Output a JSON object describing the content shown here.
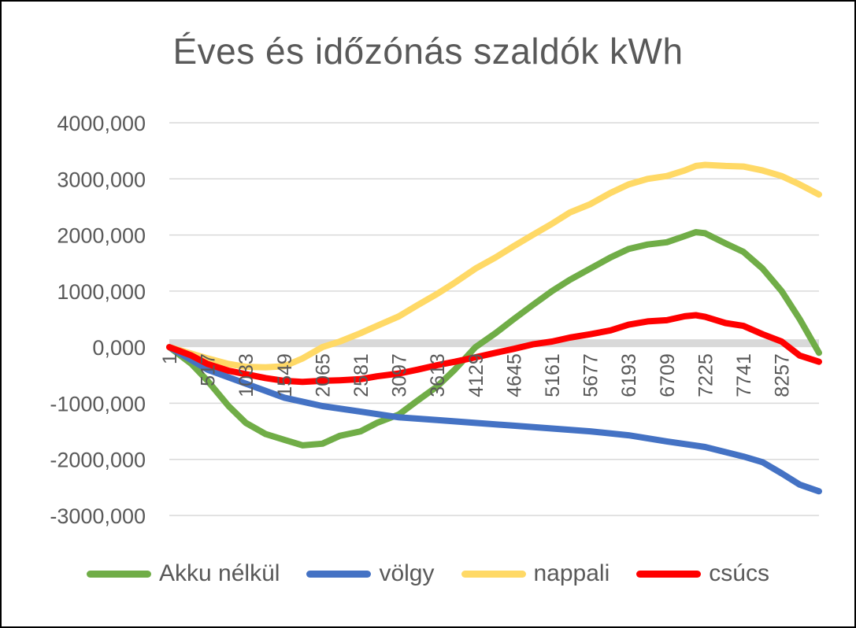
{
  "chart_data": {
    "type": "line",
    "title": "Éves és időzónás szaldók kWh",
    "xlabel": "",
    "ylabel": "",
    "ylim": [
      -3000,
      4000
    ],
    "yticks": [
      4000,
      3000,
      2000,
      1000,
      0,
      -1000,
      -2000,
      -3000
    ],
    "ytick_labels": [
      "4000,000",
      "3000,000",
      "2000,000",
      "1000,000",
      "0,000",
      "-1000,000",
      "-2000,000",
      "-3000,000"
    ],
    "xlim": [
      1,
      8760
    ],
    "xticks": [
      1,
      517,
      1033,
      1549,
      2065,
      2581,
      3097,
      3613,
      4129,
      4645,
      5161,
      5677,
      6193,
      6709,
      7225,
      7741,
      8257
    ],
    "xtick_labels": [
      "1",
      "517",
      "1033",
      "1549",
      "2065",
      "2581",
      "3097",
      "3613",
      "4129",
      "4645",
      "5161",
      "5677",
      "6193",
      "6709",
      "7225",
      "7741",
      "8257"
    ],
    "grid": true,
    "legend_position": "bottom",
    "series": [
      {
        "name": "Akku nélkül",
        "color": "#70ad47",
        "x": [
          1,
          300,
          517,
          800,
          1033,
          1300,
          1549,
          1800,
          2065,
          2300,
          2581,
          2800,
          3097,
          3350,
          3613,
          3850,
          4129,
          4400,
          4645,
          4900,
          5161,
          5400,
          5677,
          5950,
          6193,
          6450,
          6709,
          6950,
          7100,
          7225,
          7500,
          7741,
          8000,
          8257,
          8500,
          8760
        ],
        "y": [
          0,
          -300,
          -600,
          -1050,
          -1350,
          -1550,
          -1650,
          -1750,
          -1720,
          -1580,
          -1500,
          -1350,
          -1200,
          -950,
          -700,
          -400,
          0,
          250,
          500,
          750,
          1000,
          1200,
          1400,
          1600,
          1750,
          1830,
          1870,
          1980,
          2050,
          2030,
          1850,
          1700,
          1400,
          1000,
          500,
          -100
        ]
      },
      {
        "name": "völgy",
        "color": "#4472c4",
        "x": [
          1,
          517,
          1033,
          1549,
          2065,
          2581,
          3097,
          3613,
          4129,
          4645,
          5161,
          5677,
          6193,
          6709,
          7225,
          7741,
          8000,
          8257,
          8500,
          8760
        ],
        "y": [
          0,
          -400,
          -650,
          -900,
          -1050,
          -1150,
          -1250,
          -1300,
          -1350,
          -1400,
          -1450,
          -1500,
          -1570,
          -1680,
          -1780,
          -1950,
          -2050,
          -2250,
          -2450,
          -2570
        ]
      },
      {
        "name": "nappali",
        "color": "#ffd966",
        "x": [
          1,
          517,
          800,
          1033,
          1300,
          1549,
          1800,
          2065,
          2300,
          2581,
          2800,
          3097,
          3350,
          3613,
          3850,
          4129,
          4400,
          4645,
          4900,
          5161,
          5400,
          5677,
          5950,
          6193,
          6450,
          6709,
          6950,
          7100,
          7225,
          7500,
          7741,
          8000,
          8257,
          8500,
          8760
        ],
        "y": [
          0,
          -200,
          -300,
          -350,
          -360,
          -340,
          -200,
          0,
          100,
          250,
          380,
          550,
          750,
          950,
          1150,
          1400,
          1600,
          1800,
          2000,
          2200,
          2400,
          2550,
          2750,
          2900,
          3000,
          3050,
          3150,
          3230,
          3250,
          3230,
          3220,
          3150,
          3050,
          2900,
          2720
        ]
      },
      {
        "name": "csúcs",
        "color": "#ff0000",
        "x": [
          1,
          300,
          517,
          800,
          1033,
          1300,
          1549,
          1800,
          2065,
          2300,
          2581,
          2800,
          3097,
          3350,
          3613,
          3850,
          4129,
          4400,
          4645,
          4900,
          5161,
          5400,
          5677,
          5950,
          6193,
          6450,
          6709,
          6950,
          7100,
          7225,
          7500,
          7741,
          8000,
          8257,
          8500,
          8760
        ],
        "y": [
          0,
          -150,
          -300,
          -420,
          -480,
          -550,
          -600,
          -620,
          -600,
          -590,
          -570,
          -520,
          -470,
          -400,
          -320,
          -260,
          -180,
          -100,
          -30,
          50,
          100,
          170,
          230,
          300,
          400,
          460,
          480,
          550,
          570,
          540,
          430,
          380,
          230,
          100,
          -150,
          -260
        ]
      }
    ]
  }
}
